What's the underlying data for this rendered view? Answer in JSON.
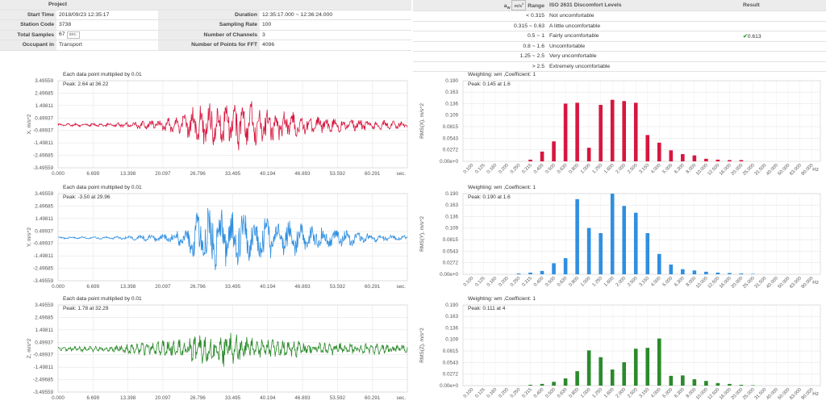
{
  "meta": {
    "header": "Project",
    "start_time_label": "Start Time",
    "start_time": "2018/09/23  12:35:17",
    "duration_label": "Duration",
    "duration": "12:35:17.000 ~ 12:36:24.000",
    "station_label": "Station Code",
    "station": "3738",
    "sampling_label": "Sampling Rate",
    "sampling": "100",
    "samples_label": "Total Samples",
    "samples": "67",
    "samples_unit": "sec.",
    "channels_label": "Number of Channels",
    "channels": "3",
    "occupant_label": "Occupant in",
    "occupant": "Transport",
    "fft_label": "Number of Points for FFT",
    "fft": "4096"
  },
  "iso": {
    "range_header_pre": "a",
    "range_header_sub": "w",
    "range_header_unit": "m/s",
    "range_header_exp": "2",
    "range_header_post": "Range",
    "levels_header": "ISO 2631 Discomfort  Levels",
    "result_header": "Result",
    "rows": [
      {
        "range": "< 0.315",
        "level": "Not  uncomfortable",
        "result": ""
      },
      {
        "range": "0.315 ~ 0.63",
        "level": "A little  uncomfortable",
        "result": ""
      },
      {
        "range": "0.5 ~ 1",
        "level": "Fairly  uncomfortable",
        "result": "0.613"
      },
      {
        "range": "0.8 ~ 1.6",
        "level": "Uncomfortable",
        "result": ""
      },
      {
        "range": "1.25 ~ 2.5",
        "level": "Very  uncomfortable",
        "result": ""
      },
      {
        "range": "> 2.5",
        "level": "Extremely  uncomfortable",
        "result": ""
      }
    ],
    "result_icon": "check-icon",
    "result_color": "#2a9d2a"
  },
  "chart_data": [
    {
      "type": "line",
      "id": "time-x",
      "color": "#d6173f",
      "note": "Each data point  multiplied  by 0.01",
      "peak": "Peak:  2.64 at 36.22",
      "ylabel": "X,  m/s^2",
      "y_ticks": [
        "3.49559",
        "2.49685",
        "1.49811",
        "0.49937",
        "-0.49937",
        "-1.49811",
        "-2.49685",
        "-3.49559"
      ],
      "x_ticks": [
        "0.000",
        "6.699",
        "13.398",
        "20.097",
        "26.796",
        "33.495",
        "40.194",
        "46.893",
        "53.592",
        "60.291"
      ],
      "x_unit": "sec.",
      "xlim": [
        0,
        67
      ],
      "ylim": [
        -3.49559,
        3.49559
      ],
      "envelope": [
        [
          0,
          0.15
        ],
        [
          10,
          0.18
        ],
        [
          14,
          0.3
        ],
        [
          18,
          0.45
        ],
        [
          22,
          0.7
        ],
        [
          24.5,
          1.1
        ],
        [
          26,
          1.8
        ],
        [
          28,
          2.2
        ],
        [
          30,
          1.8
        ],
        [
          32,
          1.9
        ],
        [
          34,
          2.0
        ],
        [
          36,
          2.64
        ],
        [
          38,
          1.8
        ],
        [
          40,
          1.5
        ],
        [
          44,
          1.3
        ],
        [
          48,
          0.9
        ],
        [
          52,
          0.7
        ],
        [
          56,
          0.55
        ],
        [
          60,
          0.45
        ],
        [
          64,
          0.4
        ],
        [
          67,
          0.35
        ]
      ],
      "series": [
        {
          "period": 1.6,
          "offset": -0.05,
          "seed": 11,
          "values_hint": "seismic waveform"
        }
      ]
    },
    {
      "type": "line",
      "id": "time-y",
      "color": "#2f8fe0",
      "note": "Each data point  multiplied  by 0.01",
      "peak": "Peak:  -3.50 at 29.96",
      "ylabel": "Y,  m/s^2",
      "y_ticks": [
        "3.49559",
        "2.49685",
        "1.49811",
        "0.49937",
        "-0.49937",
        "-1.49811",
        "-2.49685",
        "-3.49559"
      ],
      "x_ticks": [
        "0.000",
        "6.699",
        "13.398",
        "20.097",
        "26.796",
        "33.495",
        "40.194",
        "46.893",
        "53.592",
        "60.291"
      ],
      "x_unit": "sec.",
      "xlim": [
        0,
        67
      ],
      "ylim": [
        -3.49559,
        3.49559
      ],
      "envelope": [
        [
          0,
          0.1
        ],
        [
          10,
          0.12
        ],
        [
          14,
          0.2
        ],
        [
          18,
          0.35
        ],
        [
          22,
          0.7
        ],
        [
          24.5,
          1.2
        ],
        [
          26,
          2.2
        ],
        [
          28,
          2.6
        ],
        [
          29.96,
          3.5
        ],
        [
          32,
          2.5
        ],
        [
          34,
          2.6
        ],
        [
          36,
          2.4
        ],
        [
          38,
          2.1
        ],
        [
          40,
          1.9
        ],
        [
          44,
          1.7
        ],
        [
          48,
          1.3
        ],
        [
          52,
          0.9
        ],
        [
          56,
          0.7
        ],
        [
          60,
          0.4
        ],
        [
          64,
          0.25
        ],
        [
          67,
          0.2
        ]
      ],
      "series": [
        {
          "period": 2.2,
          "offset": -0.05,
          "seed": 23,
          "values_hint": "seismic waveform"
        }
      ]
    },
    {
      "type": "line",
      "id": "time-z",
      "color": "#2b8a2b",
      "note": "Each data point  multiplied  by 0.01",
      "peak": "Peak:  1.78 at 32.29",
      "ylabel": "Z,  m/s^2",
      "y_ticks": [
        "3.49559",
        "2.49685",
        "1.49811",
        "0.49937",
        "-0.49937",
        "-1.49811",
        "-2.49685",
        "-3.49559"
      ],
      "x_ticks": [
        "0.000",
        "6.699",
        "13.398",
        "20.097",
        "26.796",
        "33.495",
        "40.194",
        "46.893",
        "53.592",
        "60.291"
      ],
      "x_unit": "sec.",
      "xlim": [
        0,
        67
      ],
      "ylim": [
        -3.49559,
        3.49559
      ],
      "envelope": [
        [
          0,
          0.2
        ],
        [
          10,
          0.3
        ],
        [
          14,
          0.5
        ],
        [
          18,
          0.7
        ],
        [
          22,
          0.9
        ],
        [
          24.5,
          1.1
        ],
        [
          26,
          1.3
        ],
        [
          28,
          1.4
        ],
        [
          30,
          1.5
        ],
        [
          32.29,
          1.78
        ],
        [
          34,
          1.3
        ],
        [
          36,
          1.1
        ],
        [
          40,
          0.9
        ],
        [
          44,
          0.8
        ],
        [
          48,
          0.7
        ],
        [
          52,
          0.6
        ],
        [
          56,
          0.55
        ],
        [
          60,
          0.5
        ],
        [
          64,
          0.4
        ],
        [
          67,
          0.35
        ]
      ],
      "series": [
        {
          "period": 1.0,
          "offset": -0.03,
          "seed": 37,
          "values_hint": "seismic waveform"
        }
      ]
    },
    {
      "type": "bar",
      "id": "fft-x",
      "color": "#d6173f",
      "note": "Weighting:  wm ,Coefficient:   1",
      "peak": "Peak:  0.145 at 1.6",
      "ylabel": "RMS(X),  m/s^2",
      "y_ticks": [
        "0.190",
        "0.163",
        "0.136",
        "0.109",
        "0.0815",
        "0.0543",
        "0.0272",
        "0.00e+0"
      ],
      "ylim": [
        0,
        0.19
      ],
      "categories": [
        "0.100",
        "0.125",
        "0.160",
        "0.200",
        "0.250",
        "0.315",
        "0.400",
        "0.500",
        "0.630",
        "0.800",
        "1.000",
        "1.250",
        "1.600",
        "2.000",
        "2.500",
        "3.150",
        "4.000",
        "5.000",
        "6.300",
        "8.000",
        "10.000",
        "12.500",
        "16.000",
        "20.000",
        "25.000",
        "31.500",
        "40.000",
        "50.000",
        "63.000",
        "80.000"
      ],
      "x_unit": "Hz",
      "values": [
        0,
        0,
        0,
        0,
        0,
        0.004,
        0.023,
        0.047,
        0.136,
        0.138,
        0.032,
        0.133,
        0.145,
        0.142,
        0.138,
        0.062,
        0.044,
        0.026,
        0.017,
        0.014,
        0.006,
        0.004,
        0.003,
        0.003,
        0,
        0,
        0,
        0,
        0,
        0
      ]
    },
    {
      "type": "bar",
      "id": "fft-y",
      "color": "#2f8fe0",
      "note": "Weighting:  wm ,Coefficient:   1",
      "peak": "Peak:  0.190 at 1.6",
      "ylabel": "RMS(Y),  m/s^2",
      "y_ticks": [
        "0.190",
        "0.163",
        "0.136",
        "0.109",
        "0.0815",
        "0.0543",
        "0.0272",
        "0.00e+0"
      ],
      "ylim": [
        0,
        0.19
      ],
      "categories": [
        "0.100",
        "0.125",
        "0.160",
        "0.200",
        "0.250",
        "0.315",
        "0.400",
        "0.500",
        "0.630",
        "0.800",
        "1.000",
        "1.250",
        "1.600",
        "2.000",
        "2.500",
        "3.150",
        "4.000",
        "5.000",
        "6.300",
        "8.000",
        "10.000",
        "12.500",
        "16.000",
        "20.000",
        "25.000",
        "31.500",
        "40.000",
        "50.000",
        "63.000",
        "80.000"
      ],
      "x_unit": "Hz",
      "values": [
        0,
        0,
        0,
        0,
        0.002,
        0.004,
        0.008,
        0.026,
        0.038,
        0.177,
        0.109,
        0.097,
        0.19,
        0.161,
        0.145,
        0.097,
        0.048,
        0.023,
        0.012,
        0.009,
        0.006,
        0.004,
        0.003,
        0.002,
        0.001,
        0,
        0,
        0,
        0,
        0
      ]
    },
    {
      "type": "bar",
      "id": "fft-z",
      "color": "#2b8a2b",
      "note": "Weighting:  wm ,Coefficient:   1",
      "peak": "Peak:  0.111 at 4",
      "ylabel": "RMS(Z),  m/s^2",
      "y_ticks": [
        "0.190",
        "0.163",
        "0.136",
        "0.109",
        "0.0815",
        "0.0543",
        "0.0272",
        "0.00e+0"
      ],
      "ylim": [
        0,
        0.19
      ],
      "categories": [
        "0.100",
        "0.125",
        "0.160",
        "0.200",
        "0.250",
        "0.315",
        "0.400",
        "0.500",
        "0.630",
        "0.800",
        "1.000",
        "1.250",
        "1.600",
        "2.000",
        "2.500",
        "3.150",
        "4.000",
        "5.000",
        "6.300",
        "8.000",
        "10.000",
        "12.500",
        "16.000",
        "20.000",
        "25.000",
        "31.500",
        "40.000",
        "50.000",
        "63.000",
        "80.000"
      ],
      "x_unit": "Hz",
      "values": [
        0,
        0,
        0,
        0,
        0,
        0.002,
        0.004,
        0.009,
        0.017,
        0.034,
        0.083,
        0.067,
        0.038,
        0.055,
        0.087,
        0.089,
        0.111,
        0.023,
        0.024,
        0.015,
        0.011,
        0.006,
        0.004,
        0.002,
        0.001,
        0,
        0,
        0,
        0,
        0
      ]
    }
  ]
}
